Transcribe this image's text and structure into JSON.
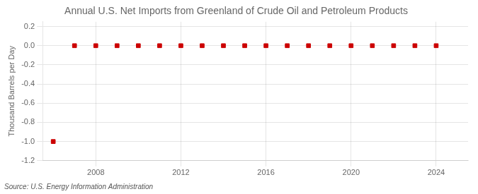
{
  "chart_data": {
    "type": "scatter",
    "title": "Annual U.S. Net Imports from Greenland of Crude Oil and Petroleum Products",
    "ylabel": "Thousand Barrels per Day",
    "source": "Source: U.S. Energy Information Administration",
    "x": [
      2006,
      2007,
      2008,
      2009,
      2010,
      2011,
      2012,
      2013,
      2014,
      2015,
      2016,
      2017,
      2018,
      2019,
      2020,
      2021,
      2022,
      2023,
      2024
    ],
    "values": [
      -1.0,
      0.0,
      0.0,
      0.0,
      0.0,
      0.0,
      0.0,
      0.0,
      0.0,
      0.0,
      0.0,
      0.0,
      0.0,
      0.0,
      0.0,
      0.0,
      0.0,
      0.0,
      0.0
    ],
    "color": "#cc0000",
    "marker": "square",
    "xlim": [
      2005.5,
      2025.5
    ],
    "xticks": [
      2008,
      2012,
      2016,
      2020,
      2024
    ],
    "ylim": [
      -1.2,
      0.25
    ],
    "yticks": [
      0.2,
      {
        "value": 0.0,
        "label": "0.0"
      },
      -0.2,
      -0.4,
      -0.6,
      -0.8,
      {
        "value": -1.0,
        "label": "-1.0"
      },
      -1.2
    ],
    "grid": true
  }
}
